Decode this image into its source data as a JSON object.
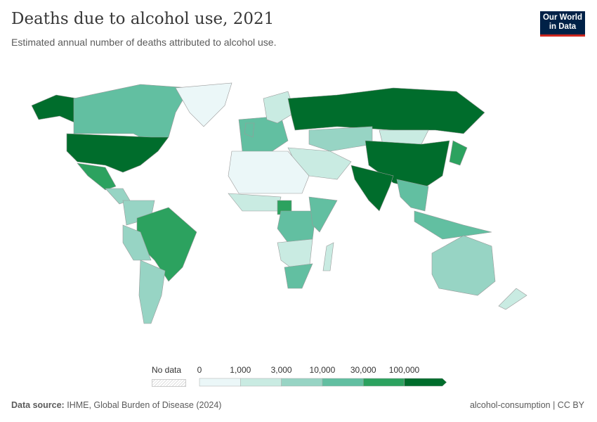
{
  "header": {
    "title": "Deaths due to alcohol use, 2021",
    "subtitle": "Estimated annual number of deaths attributed to alcohol use."
  },
  "logo": {
    "text": "Our World in Data",
    "bg_color": "#002147",
    "accent_color": "#ce261e"
  },
  "legend": {
    "no_data_label": "No data",
    "bins": [
      {
        "label": "0",
        "color": "#ebf7f8"
      },
      {
        "label": "1,000",
        "color": "#c9ebe2"
      },
      {
        "label": "3,000",
        "color": "#97d4c4"
      },
      {
        "label": "10,000",
        "color": "#62bfa1"
      },
      {
        "label": "30,000",
        "color": "#2ca25f"
      },
      {
        "label": "100,000",
        "color": "#006d2c"
      }
    ]
  },
  "map": {
    "regions": [
      {
        "name": "Alaska",
        "bin": 5
      },
      {
        "name": "Canada",
        "bin": 3
      },
      {
        "name": "Greenland",
        "bin": 0
      },
      {
        "name": "United States",
        "bin": 5
      },
      {
        "name": "Mexico",
        "bin": 4
      },
      {
        "name": "Central America",
        "bin": 2
      },
      {
        "name": "Northern South America",
        "bin": 2
      },
      {
        "name": "Brazil",
        "bin": 4
      },
      {
        "name": "Peru / Bolivia",
        "bin": 2
      },
      {
        "name": "Argentina / Chile",
        "bin": 2
      },
      {
        "name": "Western Europe",
        "bin": 3
      },
      {
        "name": "Scandinavia",
        "bin": 1
      },
      {
        "name": "United Kingdom",
        "bin": 3
      },
      {
        "name": "Russia",
        "bin": 5
      },
      {
        "name": "Central Asia",
        "bin": 2
      },
      {
        "name": "Middle East",
        "bin": 1
      },
      {
        "name": "Mongolia",
        "bin": 1
      },
      {
        "name": "China",
        "bin": 5
      },
      {
        "name": "India",
        "bin": 5
      },
      {
        "name": "Southeast Asia",
        "bin": 3
      },
      {
        "name": "Japan",
        "bin": 4
      },
      {
        "name": "Indonesia",
        "bin": 3
      },
      {
        "name": "Australia",
        "bin": 2
      },
      {
        "name": "New Zealand",
        "bin": 1
      },
      {
        "name": "North Africa",
        "bin": 0
      },
      {
        "name": "West Africa",
        "bin": 1
      },
      {
        "name": "Nigeria",
        "bin": 4
      },
      {
        "name": "Central Africa",
        "bin": 3
      },
      {
        "name": "East Africa",
        "bin": 3
      },
      {
        "name": "Southern Africa",
        "bin": 1
      },
      {
        "name": "South Africa",
        "bin": 3
      },
      {
        "name": "Madagascar",
        "bin": 1
      }
    ]
  },
  "footer": {
    "source_label": "Data source:",
    "source": "IHME, Global Burden of Disease (2024)",
    "right": "alcohol-consumption | CC BY"
  }
}
